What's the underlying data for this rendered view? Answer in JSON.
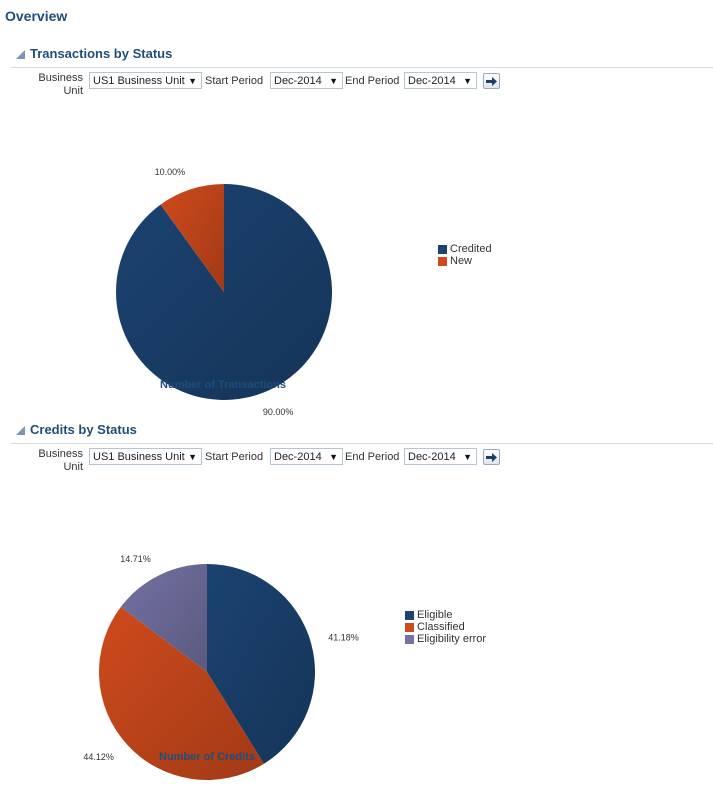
{
  "page": {
    "title": "Overview"
  },
  "sections": [
    {
      "title": "Transactions by Status",
      "filters": {
        "business_unit_label": "Business Unit",
        "business_unit_value": "US1 Business Unit",
        "start_period_label": "Start Period",
        "start_period_value": "Dec-2014",
        "end_period_label": "End Period",
        "end_period_value": "Dec-2014"
      },
      "caption": "Number of Transactions",
      "legend": [
        {
          "label": "Credited",
          "color": "#1b4371"
        },
        {
          "label": "New",
          "color": "#cf4a1c"
        }
      ]
    },
    {
      "title": "Credits by Status",
      "filters": {
        "business_unit_label": "Business Unit",
        "business_unit_value": "US1 Business Unit",
        "start_period_label": "Start Period",
        "start_period_value": "Dec-2014",
        "end_period_label": "End Period",
        "end_period_value": "Dec-2014"
      },
      "caption": "Number of Credits",
      "legend": [
        {
          "label": "Eligible",
          "color": "#1b4371"
        },
        {
          "label": "Classified",
          "color": "#cf4a1c"
        },
        {
          "label": "Eligibility error",
          "color": "#7372a3"
        }
      ]
    }
  ],
  "chart_data": [
    {
      "type": "pie",
      "title": "Number of Transactions",
      "categories": [
        "Credited",
        "New"
      ],
      "values": [
        90.0,
        10.0
      ],
      "labels": [
        "90.00%",
        "10.00%"
      ],
      "colors": [
        "#1b4371",
        "#cf4a1c"
      ],
      "legend_position": "right"
    },
    {
      "type": "pie",
      "title": "Number of Credits",
      "categories": [
        "Eligible",
        "Classified",
        "Eligibility error"
      ],
      "values": [
        41.18,
        44.12,
        14.71
      ],
      "labels": [
        "41.18%",
        "44.12%",
        "14.71%"
      ],
      "colors": [
        "#1b4371",
        "#cf4a1c",
        "#7372a3"
      ],
      "legend_position": "right"
    }
  ]
}
